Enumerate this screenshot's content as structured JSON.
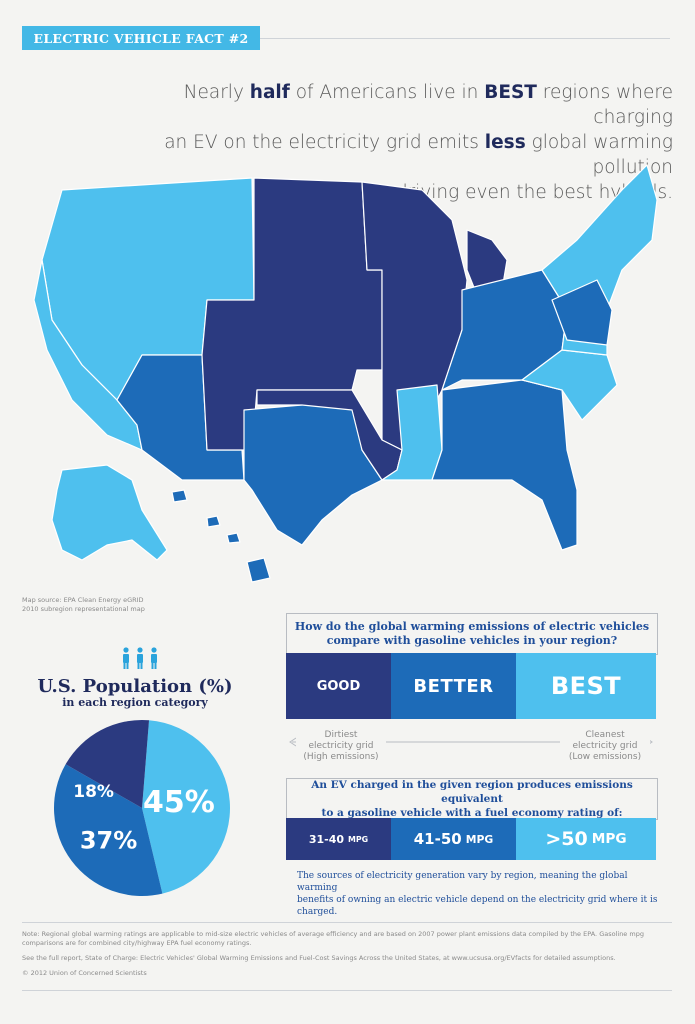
{
  "banner": {
    "label": "ELECTRIC VEHICLE FACT #2"
  },
  "headline": {
    "line1_pre": "Nearly ",
    "line1_b1": "half",
    "line1_mid": " of Americans live in ",
    "line1_b2": "BEST",
    "line1_post": " regions where charging",
    "line2_pre": "an EV on the electricity grid emits ",
    "line2_b": "less",
    "line2_post": " global warming pollution",
    "line3": "than driving even the best hybrids."
  },
  "map": {
    "source_line1": "Map source: EPA Clean Energy eGRID",
    "source_line2": "2010 subregion representational map"
  },
  "population": {
    "icon": "people-icon",
    "title": "U.S. Population (%)",
    "subtitle": "in each region category"
  },
  "chart_data": {
    "type": "pie",
    "title": "U.S. Population (%)",
    "categories": [
      "BEST",
      "BETTER",
      "GOOD"
    ],
    "values": [
      45,
      37,
      18
    ],
    "labels": [
      "45%",
      "37%",
      "18%"
    ],
    "colors": [
      "#4ec0ee",
      "#1d6bb8",
      "#2b3a80"
    ]
  },
  "question": {
    "line1": "How do the global warming emissions of electric vehicles",
    "line2": "compare with gasoline vehicles in your region?"
  },
  "categories": {
    "good": "GOOD",
    "better": "BETTER",
    "best": "BEST"
  },
  "scale": {
    "left_line1": "Dirtiest",
    "left_line2": "electricity grid",
    "left_line3": "(High emissions)",
    "right_line1": "Cleanest",
    "right_line2": "electricity grid",
    "right_line3": "(Low emissions)"
  },
  "mpg_question": {
    "line1": "An EV charged in the given region produces emissions equivalent",
    "line2": "to a gasoline vehicle with a fuel economy rating of:"
  },
  "mpg": {
    "good_value": "31-40",
    "better_value": "41-50",
    "best_value": ">50",
    "unit": "MPG"
  },
  "sources_text": {
    "line1": "The sources of electricity generation vary by region, meaning the global warming",
    "line2": "benefits of owning an electric vehicle depend on the electricity grid where it is charged."
  },
  "notes": {
    "note1": "Note: Regional global warming ratings are applicable to mid-size electric vehicles of average efficiency and are based on 2007 power plant emissions data compiled by the EPA. Gasoline mpg comparisons are for combined city/highway EPA fuel economy ratings.",
    "note2": "See the full report, State of Charge: Electric Vehicles' Global Warming Emissions and Fuel-Cost Savings Across the United States, at www.ucsusa.org/EVfacts for detailed assumptions.",
    "copyright": "© 2012 Union of Concerned Scientists"
  },
  "colors": {
    "good": "#2b3a80",
    "better": "#1d6bb8",
    "best": "#4ec0ee",
    "background": "#f4f4f2"
  }
}
